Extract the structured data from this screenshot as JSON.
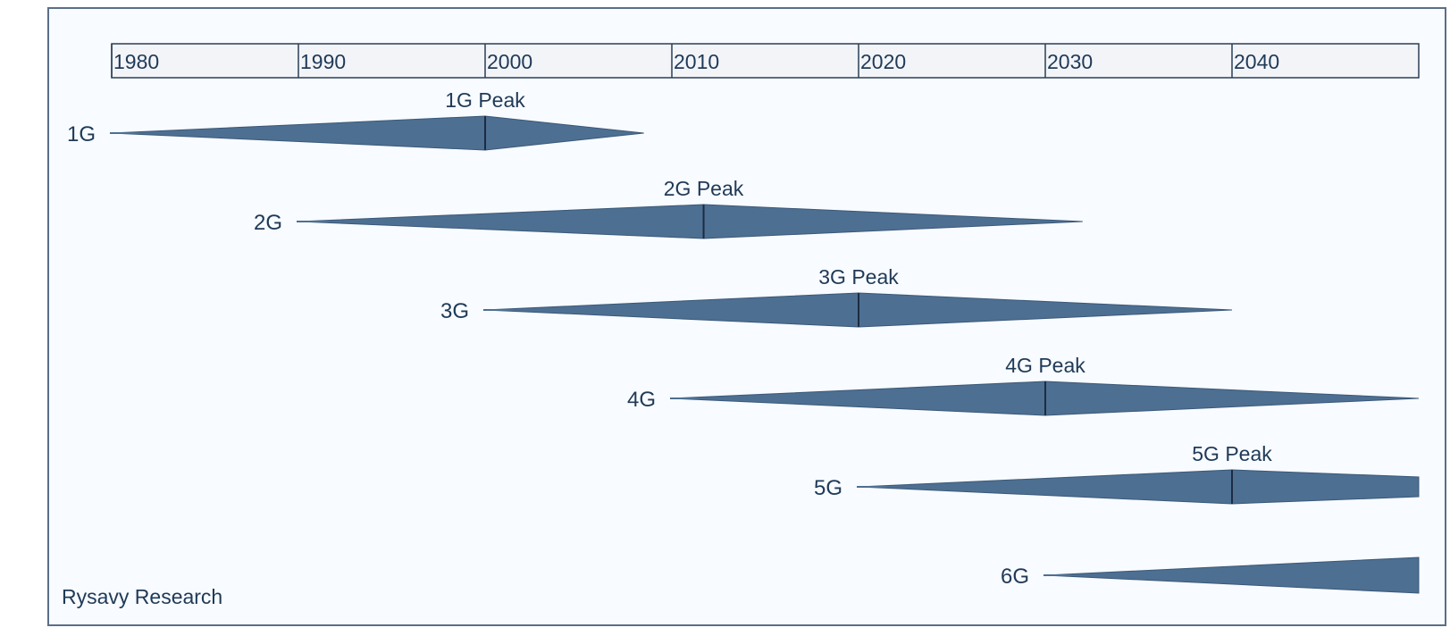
{
  "source": "Rysavy Research",
  "colors": {
    "shape_fill": "#4d6f92",
    "shape_stroke": "#3b5878",
    "peak_line": "#1b2c42",
    "axis_band_fill": "#f2f4f8",
    "axis_border": "#2a3e56",
    "text": "#1f3a57"
  },
  "chart_data": {
    "type": "timeline",
    "title": "",
    "xlabel": "",
    "ylabel": "",
    "x_axis": {
      "ticks": [
        1980,
        1990,
        2000,
        2010,
        2020,
        2030,
        2040
      ],
      "range": [
        1980,
        2050
      ]
    },
    "series": [
      {
        "name": "1G",
        "start": 1980,
        "peak": 2000,
        "end": 2008.5,
        "peak_label": "1G Peak",
        "end_shape": "point"
      },
      {
        "name": "2G",
        "start": 1990,
        "peak": 2011.7,
        "end": 2032,
        "peak_label": "2G Peak",
        "end_shape": "point"
      },
      {
        "name": "3G",
        "start": 2000,
        "peak": 2020,
        "end": 2040,
        "peak_label": "3G Peak",
        "end_shape": "point"
      },
      {
        "name": "4G",
        "start": 2010,
        "peak": 2030,
        "end": 2050,
        "peak_label": "4G Peak",
        "end_shape": "point"
      },
      {
        "name": "5G",
        "start": 2020,
        "peak": 2040,
        "end": 2050,
        "peak_label": "5G Peak",
        "end_shape": "flat"
      },
      {
        "name": "6G",
        "start": 2030,
        "peak": null,
        "end": 2050,
        "peak_label": "",
        "end_shape": "flat"
      }
    ]
  }
}
